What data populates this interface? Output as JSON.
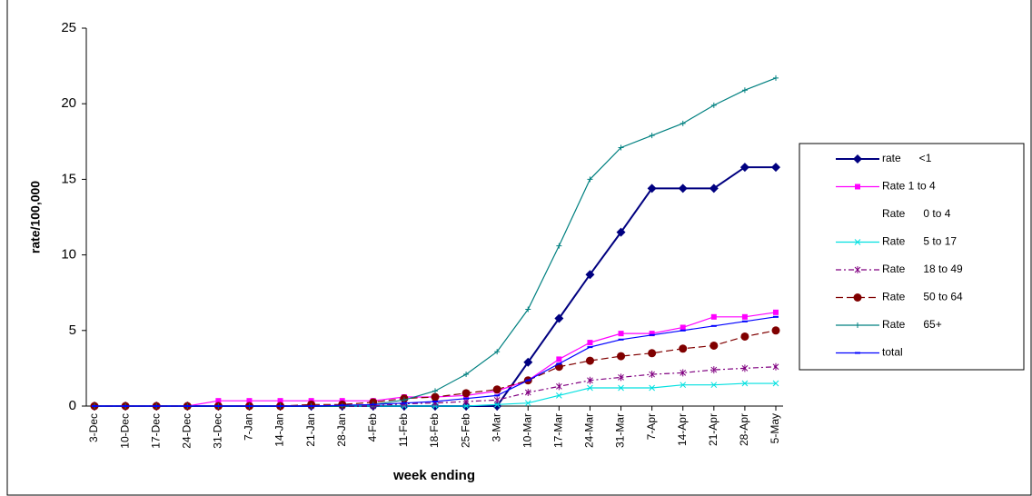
{
  "chart_data": {
    "type": "line",
    "y_label": "rate/100,000",
    "x_label": "week ending",
    "categories": [
      "3-Dec",
      "10-Dec",
      "17-Dec",
      "24-Dec",
      "31-Dec",
      "7-Jan",
      "14-Jan",
      "21-Jan",
      "28-Jan",
      "4-Feb",
      "11-Feb",
      "18-Feb",
      "25-Feb",
      "3-Mar",
      "10-Mar",
      "17-Mar",
      "24-Mar",
      "31-Mar",
      "7-Apr",
      "14-Apr",
      "21-Apr",
      "28-Apr",
      "5-May"
    ],
    "ylim": [
      0,
      25
    ],
    "yticks": [
      0,
      5,
      10,
      15,
      20,
      25
    ],
    "grid": false,
    "legend": "right",
    "series": [
      {
        "name": "rate      <1",
        "color": "#000080",
        "marker": "diamond",
        "dash": "solid",
        "values": [
          0,
          0,
          0,
          0,
          0,
          0,
          0,
          0,
          0,
          0,
          0,
          0,
          0,
          0,
          2.9,
          5.8,
          8.7,
          11.5,
          14.4,
          14.4,
          14.4,
          15.8,
          15.8
        ]
      },
      {
        "name": "Rate 1 to 4",
        "color": "#ff00ff",
        "marker": "square",
        "dash": "solid",
        "values": [
          0,
          0,
          0,
          0,
          0.35,
          0.35,
          0.35,
          0.35,
          0.35,
          0.35,
          0.6,
          0.6,
          0.7,
          1.0,
          1.7,
          3.1,
          4.2,
          4.8,
          4.8,
          5.2,
          5.9,
          5.9,
          6.2
        ]
      },
      {
        "name": "Rate      0 to 4",
        "color": "#ffffff",
        "marker": "none",
        "dash": "solid",
        "values": [
          null,
          null,
          null,
          null,
          null,
          null,
          null,
          null,
          null,
          null,
          null,
          null,
          null,
          null,
          null,
          null,
          null,
          null,
          null,
          null,
          null,
          null,
          null
        ]
      },
      {
        "name": "Rate      5 to 17",
        "color": "#00e0e0",
        "marker": "x",
        "dash": "solid",
        "values": [
          0,
          0,
          0,
          0,
          0,
          0,
          0,
          0,
          0,
          0,
          0,
          0,
          0,
          0.1,
          0.2,
          0.7,
          1.2,
          1.2,
          1.2,
          1.4,
          1.4,
          1.5,
          1.5
        ]
      },
      {
        "name": "Rate      18 to 49",
        "color": "#800080",
        "marker": "star",
        "dash": "dashdot",
        "values": [
          0,
          0,
          0,
          0,
          0,
          0,
          0,
          0,
          0,
          0,
          0.15,
          0.2,
          0.3,
          0.4,
          0.9,
          1.3,
          1.7,
          1.9,
          2.1,
          2.2,
          2.4,
          2.5,
          2.6
        ]
      },
      {
        "name": "Rate      50 to 64",
        "color": "#800000",
        "marker": "circle",
        "dash": "dash",
        "values": [
          0,
          0,
          0,
          0,
          0,
          0,
          0,
          0.1,
          0.1,
          0.25,
          0.5,
          0.6,
          0.85,
          1.1,
          1.7,
          2.6,
          3.0,
          3.3,
          3.5,
          3.8,
          4.0,
          4.6,
          5.0
        ]
      },
      {
        "name": "Rate      65+",
        "color": "#008080",
        "marker": "plus",
        "dash": "solid",
        "values": [
          0,
          0,
          0,
          0,
          0,
          0,
          0,
          0,
          0,
          0.1,
          0.4,
          1.0,
          2.1,
          3.6,
          6.4,
          10.6,
          15.0,
          17.1,
          17.9,
          18.7,
          19.9,
          20.9,
          21.7
        ]
      },
      {
        "name": "total",
        "color": "#0000ff",
        "marker": "dashmark",
        "dash": "solid",
        "values": [
          0,
          0,
          0,
          0,
          0,
          0,
          0,
          0,
          0.05,
          0.1,
          0.2,
          0.3,
          0.5,
          0.7,
          1.7,
          2.8,
          3.9,
          4.4,
          4.7,
          5.0,
          5.3,
          5.6,
          5.9
        ]
      }
    ]
  }
}
